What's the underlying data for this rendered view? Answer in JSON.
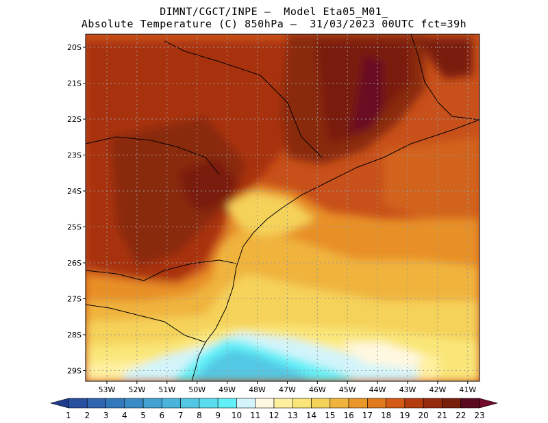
{
  "header": {
    "line1": "DIMNT/CGCT/INPE —  Model Eta05_M01_",
    "line2": "Absolute Temperature (C) 850hPa —  31/03/2023 00UTC fct=39h"
  },
  "map": {
    "lat_labels": [
      "20S",
      "21S",
      "22S",
      "23S",
      "24S",
      "25S",
      "26S",
      "27S",
      "28S",
      "29S"
    ],
    "lon_labels": [
      "53W",
      "52W",
      "51W",
      "50W",
      "49W",
      "48W",
      "47W",
      "46W",
      "45W",
      "44W",
      "43W",
      "42W",
      "41W"
    ]
  },
  "colorbar": {
    "labels": [
      "1",
      "2",
      "3",
      "4",
      "5",
      "6",
      "7",
      "8",
      "9",
      "10",
      "11",
      "12",
      "13",
      "14",
      "15",
      "16",
      "17",
      "18",
      "19",
      "20",
      "21",
      "22",
      "23"
    ],
    "colors": [
      "#1e3c8c",
      "#2850a0",
      "#2e64b0",
      "#3278bc",
      "#3a8cc8",
      "#42a0d2",
      "#4ab4dc",
      "#52c8e4",
      "#5adcee",
      "#62f0f8",
      "#d2f4fa",
      "#fff8e0",
      "#fff0a0",
      "#fae678",
      "#f5d25a",
      "#f0b43c",
      "#eb9628",
      "#e0781e",
      "#d25a14",
      "#b43c0f",
      "#962a0d",
      "#7a1e0c",
      "#5a0a1e",
      "#700a28"
    ]
  }
}
